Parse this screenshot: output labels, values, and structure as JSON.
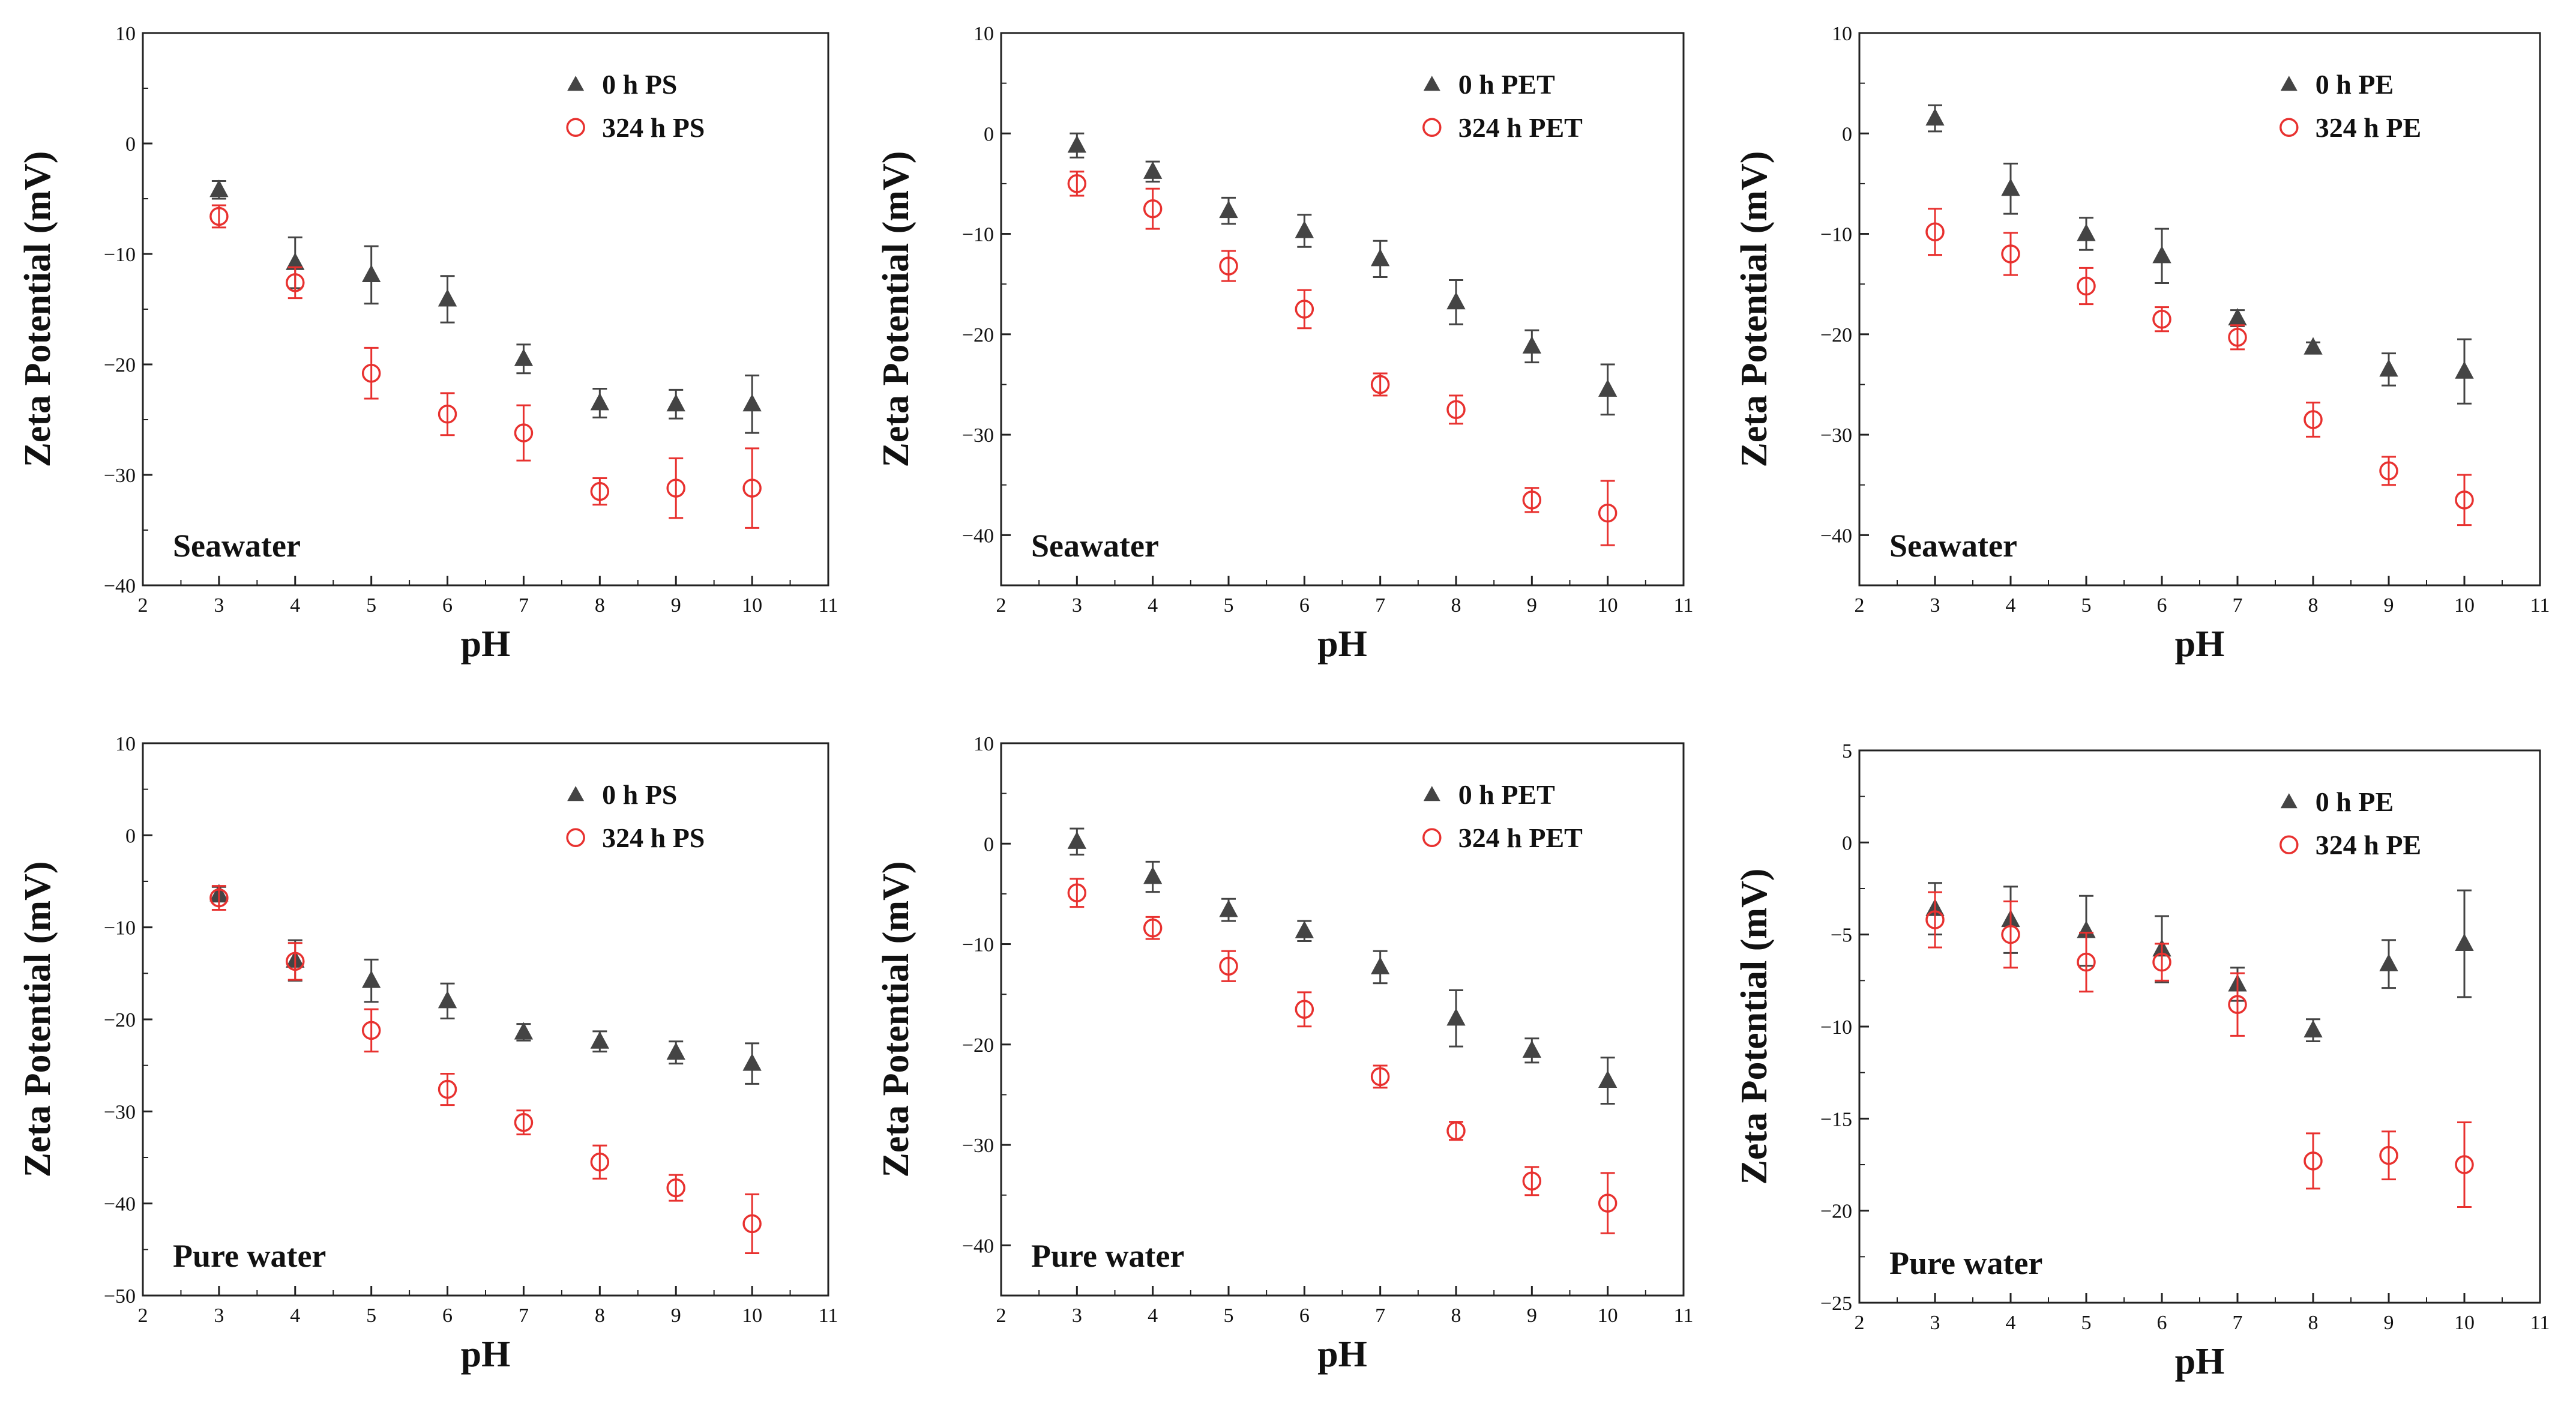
{
  "colors": {
    "series_0h": "#444444",
    "series_324h": "#e8312f"
  },
  "chart_data": [
    {
      "type": "scatter",
      "panel": "top-left",
      "xlabel": "pH",
      "ylabel": "Zeta Potential (mV)",
      "xlim": [
        2,
        11
      ],
      "ylim": [
        -40,
        10
      ],
      "xticks": [
        2,
        3,
        4,
        5,
        6,
        7,
        8,
        9,
        10,
        11
      ],
      "yticks": [
        10,
        0,
        -10,
        -20,
        -30,
        -40
      ],
      "annotation": "Seawater",
      "legend_position": "top-right",
      "series": [
        {
          "name": "0 h PS",
          "marker": "triangle",
          "x": [
            3,
            4,
            5,
            6,
            7,
            8,
            9,
            10
          ],
          "y": [
            -4.2,
            -10.8,
            -11.9,
            -14.1,
            -19.5,
            -23.5,
            -23.6,
            -23.6
          ],
          "err": [
            0.8,
            2.3,
            2.6,
            2.1,
            1.3,
            1.3,
            1.3,
            2.6
          ]
        },
        {
          "name": "324 h PS",
          "marker": "circle",
          "x": [
            3,
            4,
            5,
            6,
            7,
            8,
            9,
            10
          ],
          "y": [
            -6.6,
            -12.6,
            -20.8,
            -24.5,
            -26.2,
            -31.5,
            -31.2,
            -31.2
          ],
          "err": [
            1.0,
            1.4,
            2.3,
            1.9,
            2.5,
            1.2,
            2.7,
            3.6
          ]
        }
      ]
    },
    {
      "type": "scatter",
      "panel": "top-middle",
      "xlabel": "pH",
      "ylabel": "Zeta Potential (mV)",
      "xlim": [
        2,
        11
      ],
      "ylim": [
        -45,
        10
      ],
      "xticks": [
        2,
        3,
        4,
        5,
        6,
        7,
        8,
        9,
        10,
        11
      ],
      "yticks": [
        10,
        0,
        -10,
        -20,
        -30,
        -40
      ],
      "annotation": "Seawater",
      "legend_position": "top-right",
      "series": [
        {
          "name": "0 h PET",
          "marker": "triangle",
          "x": [
            3,
            4,
            5,
            6,
            7,
            8,
            9,
            10
          ],
          "y": [
            -1.2,
            -3.8,
            -7.7,
            -9.7,
            -12.5,
            -16.8,
            -21.2,
            -25.5
          ],
          "err": [
            1.2,
            1.0,
            1.3,
            1.6,
            1.8,
            2.2,
            1.6,
            2.5
          ]
        },
        {
          "name": "324 h PET",
          "marker": "circle",
          "x": [
            3,
            4,
            5,
            6,
            7,
            8,
            9,
            10
          ],
          "y": [
            -5.0,
            -7.5,
            -13.2,
            -17.5,
            -25.0,
            -27.5,
            -36.5,
            -37.8
          ],
          "err": [
            1.2,
            2.0,
            1.5,
            1.9,
            1.1,
            1.4,
            1.2,
            3.2
          ]
        }
      ]
    },
    {
      "type": "scatter",
      "panel": "top-right",
      "xlabel": "pH",
      "ylabel": "Zeta Potential (mV)",
      "xlim": [
        2,
        11
      ],
      "ylim": [
        -45,
        10
      ],
      "xticks": [
        2,
        3,
        4,
        5,
        6,
        7,
        8,
        9,
        10,
        11
      ],
      "yticks": [
        10,
        0,
        -10,
        -20,
        -30,
        -40
      ],
      "annotation": "Seawater",
      "legend_position": "top-right",
      "series": [
        {
          "name": "0 h PE",
          "marker": "triangle",
          "x": [
            3,
            4,
            5,
            6,
            7,
            8,
            9,
            10
          ],
          "y": [
            1.5,
            -5.5,
            -10.0,
            -12.2,
            -18.4,
            -21.3,
            -23.5,
            -23.7
          ],
          "err": [
            1.3,
            2.5,
            1.6,
            2.7,
            0.8,
            0.5,
            1.6,
            3.2
          ]
        },
        {
          "name": "324 h PE",
          "marker": "circle",
          "x": [
            3,
            4,
            5,
            6,
            7,
            8,
            9,
            10
          ],
          "y": [
            -9.8,
            -12.0,
            -15.2,
            -18.5,
            -20.3,
            -28.5,
            -33.6,
            -36.5
          ],
          "err": [
            2.3,
            2.1,
            1.8,
            1.2,
            1.2,
            1.7,
            1.4,
            2.5
          ]
        }
      ]
    },
    {
      "type": "scatter",
      "panel": "bottom-left",
      "xlabel": "pH",
      "ylabel": "Zeta Potential (mV)",
      "xlim": [
        2,
        11
      ],
      "ylim": [
        -50,
        10
      ],
      "xticks": [
        2,
        3,
        4,
        5,
        6,
        7,
        8,
        9,
        10,
        11
      ],
      "yticks": [
        10,
        0,
        -10,
        -20,
        -30,
        -40,
        -50
      ],
      "annotation": "Pure water",
      "legend_position": "top-right",
      "series": [
        {
          "name": "0 h PS",
          "marker": "triangle",
          "x": [
            3,
            4,
            5,
            6,
            7,
            8,
            9,
            10
          ],
          "y": [
            -6.4,
            -13.6,
            -15.8,
            -18.0,
            -21.4,
            -22.4,
            -23.6,
            -24.8
          ],
          "err": [
            0.8,
            2.2,
            2.3,
            1.9,
            0.9,
            1.1,
            1.2,
            2.2
          ]
        },
        {
          "name": "324 h PS",
          "marker": "circle",
          "x": [
            3,
            4,
            5,
            6,
            7,
            8,
            9,
            10
          ],
          "y": [
            -6.8,
            -13.7,
            -21.2,
            -27.6,
            -31.2,
            -35.5,
            -38.3,
            -42.2
          ],
          "err": [
            1.3,
            2.0,
            2.3,
            1.7,
            1.3,
            1.8,
            1.4,
            3.2
          ]
        }
      ]
    },
    {
      "type": "scatter",
      "panel": "bottom-middle",
      "xlabel": "pH",
      "ylabel": "Zeta Potential (mV)",
      "xlim": [
        2,
        11
      ],
      "ylim": [
        -45,
        10
      ],
      "xticks": [
        2,
        3,
        4,
        5,
        6,
        7,
        8,
        9,
        10,
        11
      ],
      "yticks": [
        10,
        0,
        -10,
        -20,
        -30,
        -40
      ],
      "annotation": "Pure water",
      "legend_position": "top-right",
      "series": [
        {
          "name": "0 h PET",
          "marker": "triangle",
          "x": [
            3,
            4,
            5,
            6,
            7,
            8,
            9,
            10
          ],
          "y": [
            0.2,
            -3.3,
            -6.6,
            -8.7,
            -12.3,
            -17.4,
            -20.6,
            -23.6
          ],
          "err": [
            1.3,
            1.5,
            1.1,
            1.0,
            1.6,
            2.8,
            1.2,
            2.3
          ]
        },
        {
          "name": "324 h PET",
          "marker": "circle",
          "x": [
            3,
            4,
            5,
            6,
            7,
            8,
            9,
            10
          ],
          "y": [
            -4.9,
            -8.4,
            -12.2,
            -16.5,
            -23.2,
            -28.6,
            -33.6,
            -35.8
          ],
          "err": [
            1.4,
            1.1,
            1.5,
            1.7,
            1.1,
            0.9,
            1.4,
            3.0
          ]
        }
      ]
    },
    {
      "type": "scatter",
      "panel": "bottom-right",
      "xlabel": "pH",
      "ylabel": "Zeta Potential (mV)",
      "xlim": [
        2,
        11
      ],
      "ylim": [
        -25,
        5
      ],
      "xticks": [
        2,
        3,
        4,
        5,
        6,
        7,
        8,
        9,
        10,
        11
      ],
      "yticks": [
        5,
        0,
        -5,
        -10,
        -15,
        -20,
        -25
      ],
      "annotation": "Pure water",
      "legend_position": "top-right",
      "series": [
        {
          "name": "0 h PE",
          "marker": "triangle",
          "x": [
            3,
            4,
            5,
            6,
            7,
            8,
            9,
            10
          ],
          "y": [
            -3.6,
            -4.2,
            -4.8,
            -5.8,
            -7.7,
            -10.2,
            -6.6,
            -5.5
          ],
          "err": [
            1.4,
            1.8,
            1.9,
            1.8,
            0.9,
            0.6,
            1.3,
            2.9
          ]
        },
        {
          "name": "324 h PE",
          "marker": "circle",
          "x": [
            3,
            4,
            5,
            6,
            7,
            8,
            9,
            10
          ],
          "y": [
            -4.2,
            -5.0,
            -6.5,
            -6.5,
            -8.8,
            -17.3,
            -17.0,
            -17.5
          ],
          "err": [
            1.5,
            1.8,
            1.6,
            1.0,
            1.7,
            1.5,
            1.3,
            2.3
          ]
        }
      ]
    }
  ]
}
